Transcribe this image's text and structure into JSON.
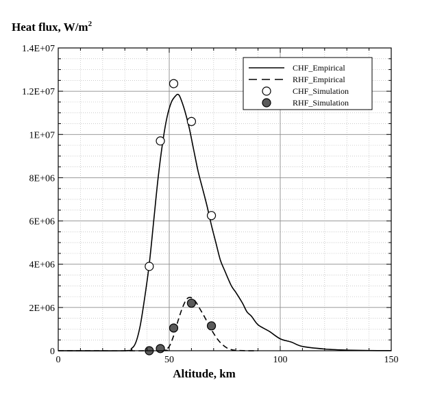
{
  "chart_data": {
    "type": "line",
    "title": "",
    "xlabel": "Altitude, km",
    "ylabel": "Heat flux, W/m",
    "ylabel_superscript": "2",
    "xlim": [
      0,
      150
    ],
    "ylim": [
      0,
      14000000
    ],
    "x_ticks": [
      0,
      50,
      100,
      150
    ],
    "x_tick_labels": [
      "0",
      "50",
      "100",
      "150"
    ],
    "y_ticks": [
      0,
      2000000,
      4000000,
      6000000,
      8000000,
      10000000,
      12000000,
      14000000
    ],
    "y_tick_labels": [
      "0",
      "2E+06",
      "4E+06",
      "6E+06",
      "8E+06",
      "1E+07",
      "1.2E+07",
      "1.4E+07"
    ],
    "grid": "major solid, minor dotted",
    "legend_position": "top-right",
    "series": [
      {
        "name": "CHF_Empirical",
        "style": "solid-line",
        "x": [
          0,
          30,
          33,
          35,
          37,
          39,
          41,
          43,
          45,
          47,
          49,
          51,
          53,
          54,
          55,
          57,
          59,
          61,
          63,
          65,
          67,
          69,
          71,
          73,
          75,
          78,
          80,
          83,
          85,
          87,
          90,
          95,
          100,
          105,
          110,
          120,
          130,
          140,
          150
        ],
        "y": [
          0,
          0,
          100000,
          400000,
          1200000,
          2500000,
          4000000,
          6000000,
          8000000,
          9600000,
          10800000,
          11500000,
          11800000,
          11850000,
          11700000,
          11100000,
          10300000,
          9300000,
          8300000,
          7500000,
          6700000,
          5800000,
          5000000,
          4200000,
          3700000,
          3000000,
          2700000,
          2200000,
          1800000,
          1600000,
          1200000,
          900000,
          550000,
          400000,
          200000,
          80000,
          30000,
          10000,
          5000
        ]
      },
      {
        "name": "RHF_Empirical",
        "style": "dashed-line",
        "x": [
          0,
          45,
          48,
          50,
          52,
          54,
          56,
          58,
          60,
          62,
          64,
          66,
          68,
          70,
          72,
          74,
          76,
          78,
          80,
          85,
          90
        ],
        "y": [
          0,
          0,
          50000,
          200000,
          700000,
          1400000,
          2000000,
          2400000,
          2450000,
          2250000,
          1900000,
          1550000,
          1150000,
          800000,
          500000,
          280000,
          130000,
          50000,
          20000,
          0,
          0
        ]
      },
      {
        "name": "CHF_Simulation",
        "style": "open-circle",
        "x": [
          41,
          46,
          52,
          60,
          69
        ],
        "y": [
          3900000,
          9700000,
          12350000,
          10600000,
          6250000
        ]
      },
      {
        "name": "RHF_Simulation",
        "style": "filled-circle",
        "x": [
          41,
          46,
          52,
          60,
          69
        ],
        "y": [
          0,
          100000,
          1050000,
          2200000,
          1150000
        ]
      }
    ]
  }
}
